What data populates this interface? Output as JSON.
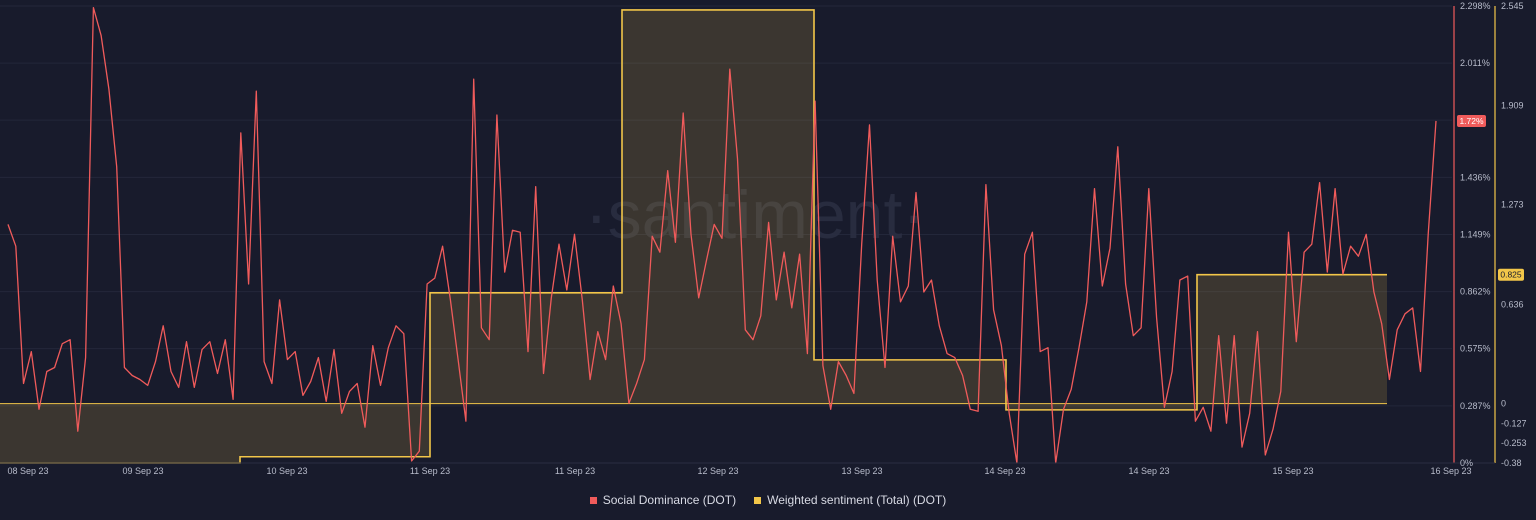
{
  "chart_data": {
    "type": "line",
    "watermark": "·santiment·",
    "x_labels": [
      "08 Sep 23",
      "09 Sep 23",
      "10 Sep 23",
      "11 Sep 23",
      "11 Sep 23",
      "12 Sep 23",
      "13 Sep 23",
      "14 Sep 23",
      "14 Sep 23",
      "15 Sep 23",
      "16 Sep 23"
    ],
    "y_left": {
      "ticks": [
        "2.298%",
        "2.011%",
        "1.72%",
        "1.436%",
        "1.149%",
        "0.862%",
        "0.575%",
        "0.287%",
        "0%"
      ],
      "tick_values": [
        2.298,
        2.011,
        1.724,
        1.436,
        1.149,
        0.862,
        0.575,
        0.287,
        0
      ],
      "range": [
        0,
        2.298
      ]
    },
    "y_right": {
      "ticks": [
        "2.545",
        "1.909",
        "1.273",
        "0.636",
        "0",
        "-0.127",
        "-0.253",
        "-0.38"
      ],
      "tick_values": [
        2.545,
        1.909,
        1.273,
        0.636,
        0,
        -0.127,
        -0.253,
        -0.38
      ],
      "range": [
        -0.38,
        2.545
      ]
    },
    "current_values": {
      "left": "1.72%",
      "right": "0.825"
    },
    "series": [
      {
        "name": "Social Dominance (DOT)",
        "color": "#f05b5b",
        "axis": "left",
        "values": [
          1.2,
          1.09,
          0.4,
          0.56,
          0.27,
          0.46,
          0.48,
          0.6,
          0.62,
          0.16,
          0.53,
          2.29,
          2.15,
          1.88,
          1.49,
          0.48,
          0.44,
          0.42,
          0.39,
          0.51,
          0.69,
          0.46,
          0.38,
          0.61,
          0.38,
          0.57,
          0.61,
          0.45,
          0.62,
          0.32,
          1.66,
          0.9,
          1.87,
          0.51,
          0.4,
          0.82,
          0.52,
          0.56,
          0.34,
          0.41,
          0.53,
          0.31,
          0.57,
          0.25,
          0.36,
          0.4,
          0.18,
          0.59,
          0.39,
          0.58,
          0.69,
          0.65,
          0.01,
          0.06,
          0.9,
          0.93,
          1.09,
          0.82,
          0.52,
          0.21,
          1.93,
          0.68,
          0.62,
          1.75,
          0.96,
          1.17,
          1.16,
          0.56,
          1.39,
          0.45,
          0.83,
          1.1,
          0.87,
          1.15,
          0.82,
          0.42,
          0.66,
          0.52,
          0.89,
          0.7,
          0.3,
          0.4,
          0.52,
          1.14,
          1.06,
          1.47,
          1.11,
          1.76,
          1.15,
          0.83,
          1.02,
          1.2,
          1.13,
          1.98,
          1.53,
          0.67,
          0.62,
          0.74,
          1.21,
          0.82,
          1.06,
          0.78,
          1.05,
          0.55,
          1.82,
          0.49,
          0.27,
          0.51,
          0.44,
          0.35,
          1.1,
          1.7,
          0.92,
          0.48,
          1.14,
          0.81,
          0.89,
          1.36,
          0.86,
          0.92,
          0.69,
          0.55,
          0.53,
          0.44,
          0.27,
          0.26,
          1.4,
          0.77,
          0.59,
          0.25,
          0.0,
          1.05,
          1.16,
          0.56,
          0.58,
          0.0,
          0.27,
          0.37,
          0.58,
          0.81,
          1.38,
          0.89,
          1.08,
          1.59,
          0.9,
          0.64,
          0.68,
          1.38,
          0.73,
          0.28,
          0.46,
          0.92,
          0.94,
          0.21,
          0.28,
          0.16,
          0.64,
          0.2,
          0.64,
          0.08,
          0.25,
          0.66,
          0.04,
          0.17,
          0.36,
          1.16,
          0.61,
          1.06,
          1.1,
          1.41,
          0.96,
          1.38,
          0.95,
          1.09,
          1.04,
          1.15,
          0.86,
          0.7,
          0.42,
          0.67,
          0.75,
          0.78,
          0.46,
          1.15,
          1.72
        ]
      },
      {
        "name": "Weighted sentiment (Total) (DOT)",
        "color": "#f2c649",
        "fill": "rgba(242,198,73,0.16)",
        "axis": "right",
        "x_range": [
          0,
          1387
        ],
        "steps": [
          {
            "x0": 0,
            "x1": 240,
            "value": -0.38
          },
          {
            "x0": 240,
            "x1": 430,
            "value": -0.34
          },
          {
            "x0": 430,
            "x1": 622,
            "value": 0.709
          },
          {
            "x0": 622,
            "x1": 814,
            "value": 2.52
          },
          {
            "x0": 814,
            "x1": 1006,
            "value": 0.28
          },
          {
            "x0": 1006,
            "x1": 1197,
            "value": -0.04
          },
          {
            "x0": 1197,
            "x1": 1387,
            "value": 0.825
          }
        ]
      }
    ]
  },
  "legend": {
    "item0": "Social Dominance (DOT)",
    "item1": "Weighted sentiment (Total) (DOT)"
  }
}
